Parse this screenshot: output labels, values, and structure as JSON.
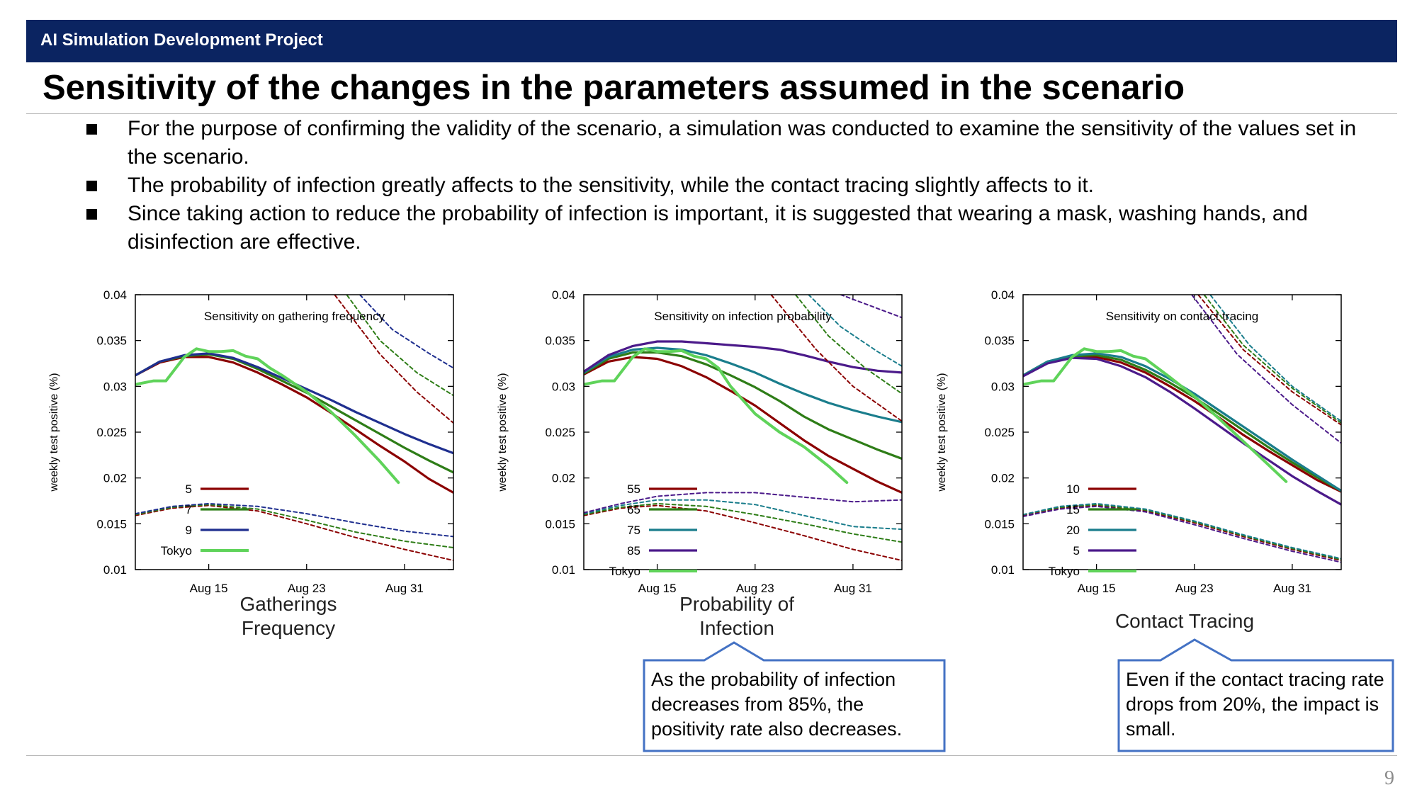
{
  "header": {
    "project": "AI Simulation Development Project"
  },
  "slide": {
    "title": "Sensitivity of the changes in the parameters assumed in the scenario",
    "bullets": [
      "For the purpose of confirming the validity of the scenario, a simulation was conducted to examine the sensitivity of the values set in the scenario.",
      "The probability of infection greatly affects to the sensitivity, while the contact tracing slightly affects to it.",
      "Since taking action to reduce the probability of infection is important, it is suggested that wearing a mask, washing hands, and disinfection are effective."
    ],
    "page_number": "9"
  },
  "captions": [
    "Gatherings\nFrequency",
    "Probability of\nInfection",
    "Contact Tracing"
  ],
  "callouts": [
    "As the probability of infection decreases from 85%, the positivity rate also decreases.",
    "Even if the contact tracing rate drops from 20%, the impact is small."
  ],
  "colors": {
    "header": "#0b2461",
    "callout_border": "#4472c4",
    "red": "#8b0000",
    "green": "#2e7d17",
    "teal": "#1a7d8c",
    "blue": "#1f2f8f",
    "purple": "#4b1a8a",
    "tokyo": "#5fd35a"
  },
  "chart_data": [
    {
      "type": "line",
      "title": "Sensitivity on gathering frequency",
      "ylabel": "weekly test positive (%)",
      "ylim": [
        0.01,
        0.04
      ],
      "yticks": [
        "0.04",
        "0.035",
        "0.03",
        "0.025",
        "0.02",
        "0.015",
        "0.01"
      ],
      "xticks": [
        "Aug 15",
        "Aug 23",
        "Aug 31"
      ],
      "xlim": [
        10,
        36
      ],
      "legend": "bottom-left",
      "series": [
        {
          "name": "5",
          "color": "red",
          "x": [
            10,
            12,
            14,
            16,
            18,
            20,
            22,
            24,
            26,
            28,
            30,
            32,
            34,
            36
          ],
          "y": [
            0.0312,
            0.0326,
            0.0332,
            0.0332,
            0.0326,
            0.0315,
            0.0302,
            0.0288,
            0.0271,
            0.0253,
            0.0235,
            0.0218,
            0.0199,
            0.0184
          ]
        },
        {
          "name": "7",
          "color": "green",
          "x": [
            10,
            12,
            14,
            16,
            18,
            20,
            22,
            24,
            26,
            28,
            30,
            32,
            34,
            36
          ],
          "y": [
            0.0312,
            0.0327,
            0.0333,
            0.0335,
            0.033,
            0.0319,
            0.0306,
            0.0293,
            0.0278,
            0.0263,
            0.0248,
            0.0233,
            0.0219,
            0.0206
          ]
        },
        {
          "name": "9",
          "color": "blue",
          "x": [
            10,
            12,
            14,
            16,
            18,
            20,
            22,
            24,
            26,
            28,
            30,
            32,
            34,
            36
          ],
          "y": [
            0.0312,
            0.0327,
            0.0334,
            0.0336,
            0.0331,
            0.0321,
            0.0309,
            0.0297,
            0.0285,
            0.0272,
            0.026,
            0.0248,
            0.0237,
            0.0227
          ]
        },
        {
          "name": "Tokyo",
          "color": "tokyo",
          "x": [
            10,
            11.5,
            12.5,
            14,
            15,
            16,
            17,
            18,
            19,
            20,
            21,
            22,
            24,
            26,
            28,
            30,
            31.5
          ],
          "y": [
            0.0302,
            0.0306,
            0.0306,
            0.0332,
            0.0341,
            0.0338,
            0.0338,
            0.0339,
            0.0333,
            0.033,
            0.032,
            0.0312,
            0.0294,
            0.0272,
            0.0246,
            0.0218,
            0.0195
          ]
        },
        {
          "dashed": true,
          "color": "red",
          "x": [
            26,
            30,
            33,
            36
          ],
          "y": [
            0.0405,
            0.0335,
            0.0294,
            0.026
          ]
        },
        {
          "dashed": true,
          "color": "green",
          "x": [
            27,
            30,
            33,
            36
          ],
          "y": [
            0.0405,
            0.035,
            0.0315,
            0.029
          ]
        },
        {
          "dashed": true,
          "color": "blue",
          "x": [
            28,
            31,
            34,
            36
          ],
          "y": [
            0.0405,
            0.0362,
            0.0336,
            0.032
          ]
        },
        {
          "dashed": true,
          "color": "red",
          "x": [
            10,
            13,
            16,
            20,
            24,
            28,
            32,
            36
          ],
          "y": [
            0.0159,
            0.0167,
            0.017,
            0.0164,
            0.015,
            0.0135,
            0.0122,
            0.011
          ]
        },
        {
          "dashed": true,
          "color": "green",
          "x": [
            10,
            13,
            16,
            20,
            24,
            28,
            32,
            36
          ],
          "y": [
            0.016,
            0.0168,
            0.0171,
            0.0166,
            0.0154,
            0.0141,
            0.0131,
            0.0124
          ]
        },
        {
          "dashed": true,
          "color": "blue",
          "x": [
            10,
            13,
            16,
            20,
            24,
            28,
            32,
            36
          ],
          "y": [
            0.0161,
            0.0169,
            0.0172,
            0.0169,
            0.0161,
            0.0151,
            0.0142,
            0.0136
          ]
        }
      ]
    },
    {
      "type": "line",
      "title": "Sensitivity on infection probability",
      "ylabel": "weekly test positive (%)",
      "ylim": [
        0.01,
        0.04
      ],
      "yticks": [
        "0.04",
        "0.035",
        "0.03",
        "0.025",
        "0.02",
        "0.015",
        "0.01"
      ],
      "xticks": [
        "Aug 15",
        "Aug 23",
        "Aug 31"
      ],
      "xlim": [
        10,
        36
      ],
      "legend": "bottom-left",
      "series": [
        {
          "name": "55",
          "color": "red",
          "x": [
            10,
            12,
            14,
            16,
            18,
            20,
            22,
            24,
            26,
            28,
            30,
            32,
            34,
            36
          ],
          "y": [
            0.0313,
            0.0327,
            0.0332,
            0.033,
            0.0322,
            0.031,
            0.0295,
            0.0279,
            0.026,
            0.0241,
            0.0224,
            0.021,
            0.0196,
            0.0184
          ]
        },
        {
          "name": "65",
          "color": "green",
          "x": [
            10,
            12,
            14,
            16,
            18,
            20,
            22,
            24,
            26,
            28,
            30,
            32,
            34,
            36
          ],
          "y": [
            0.0314,
            0.033,
            0.0337,
            0.0337,
            0.0333,
            0.0324,
            0.0312,
            0.0299,
            0.0284,
            0.0267,
            0.0253,
            0.0242,
            0.0231,
            0.0221
          ]
        },
        {
          "name": "75",
          "color": "teal",
          "x": [
            10,
            12,
            14,
            16,
            18,
            20,
            22,
            24,
            26,
            28,
            30,
            32,
            34,
            36
          ],
          "y": [
            0.0315,
            0.0332,
            0.034,
            0.0342,
            0.034,
            0.0334,
            0.0325,
            0.0315,
            0.0303,
            0.0292,
            0.0282,
            0.0274,
            0.0267,
            0.0261
          ]
        },
        {
          "name": "85",
          "color": "purple",
          "x": [
            10,
            12,
            14,
            16,
            18,
            20,
            22,
            24,
            26,
            28,
            30,
            32,
            34,
            36
          ],
          "y": [
            0.0316,
            0.0334,
            0.0344,
            0.0349,
            0.0349,
            0.0347,
            0.0345,
            0.0343,
            0.034,
            0.0334,
            0.0327,
            0.0321,
            0.0317,
            0.0315
          ]
        },
        {
          "name": "Tokyo",
          "color": "tokyo",
          "x": [
            10,
            11.5,
            12.5,
            14,
            15,
            16,
            17,
            18,
            19,
            20,
            21,
            22,
            24,
            26,
            28,
            30,
            31.5
          ],
          "y": [
            0.0302,
            0.0306,
            0.0306,
            0.0332,
            0.0341,
            0.0338,
            0.0338,
            0.0339,
            0.0333,
            0.033,
            0.032,
            0.03,
            0.027,
            0.025,
            0.0234,
            0.0213,
            0.0195
          ]
        },
        {
          "dashed": true,
          "color": "red",
          "x": [
            25,
            29,
            32,
            36
          ],
          "y": [
            0.0405,
            0.034,
            0.03,
            0.0262
          ]
        },
        {
          "dashed": true,
          "color": "green",
          "x": [
            27,
            30,
            33,
            36
          ],
          "y": [
            0.0405,
            0.0355,
            0.032,
            0.0292
          ]
        },
        {
          "dashed": true,
          "color": "teal",
          "x": [
            28,
            31,
            34,
            36
          ],
          "y": [
            0.0405,
            0.0365,
            0.0338,
            0.0322
          ]
        },
        {
          "dashed": true,
          "color": "purple",
          "x": [
            30,
            33,
            36
          ],
          "y": [
            0.0405,
            0.039,
            0.0375
          ]
        },
        {
          "dashed": true,
          "color": "red",
          "x": [
            10,
            13,
            16,
            20,
            24,
            28,
            32,
            36
          ],
          "y": [
            0.0159,
            0.0167,
            0.017,
            0.0164,
            0.0151,
            0.0137,
            0.0122,
            0.011
          ]
        },
        {
          "dashed": true,
          "color": "green",
          "x": [
            10,
            13,
            16,
            20,
            24,
            28,
            32,
            36
          ],
          "y": [
            0.016,
            0.0168,
            0.0172,
            0.0169,
            0.016,
            0.015,
            0.0139,
            0.013
          ]
        },
        {
          "dashed": true,
          "color": "teal",
          "x": [
            10,
            13,
            16,
            20,
            24,
            28,
            32,
            36
          ],
          "y": [
            0.0161,
            0.017,
            0.0176,
            0.0176,
            0.0171,
            0.0159,
            0.0147,
            0.0144
          ]
        },
        {
          "dashed": true,
          "color": "purple",
          "x": [
            10,
            13,
            16,
            20,
            24,
            28,
            32,
            36
          ],
          "y": [
            0.0162,
            0.0172,
            0.018,
            0.0184,
            0.0184,
            0.0179,
            0.0174,
            0.0176
          ]
        }
      ]
    },
    {
      "type": "line",
      "title": "Sensitivity on contact tracing",
      "ylabel": "weekly test positive (%)",
      "ylim": [
        0.01,
        0.04
      ],
      "yticks": [
        "0.04",
        "0.035",
        "0.03",
        "0.025",
        "0.02",
        "0.015",
        "0.01"
      ],
      "xticks": [
        "Aug 15",
        "Aug 23",
        "Aug 31"
      ],
      "xlim": [
        10,
        36
      ],
      "legend": "bottom-left",
      "series": [
        {
          "name": "10",
          "color": "red",
          "x": [
            10,
            12,
            14,
            16,
            18,
            20,
            22,
            24,
            26,
            28,
            30,
            32,
            34,
            36
          ],
          "y": [
            0.0312,
            0.0326,
            0.0332,
            0.0332,
            0.0326,
            0.0315,
            0.03,
            0.0284,
            0.0266,
            0.0247,
            0.023,
            0.0214,
            0.0198,
            0.0185
          ]
        },
        {
          "name": "15",
          "color": "green",
          "x": [
            10,
            12,
            14,
            16,
            18,
            20,
            22,
            24,
            26,
            28,
            30,
            32,
            34,
            36
          ],
          "y": [
            0.0312,
            0.0327,
            0.0333,
            0.0334,
            0.0329,
            0.0318,
            0.0304,
            0.0288,
            0.027,
            0.0252,
            0.0234,
            0.0217,
            0.0201,
            0.0186
          ]
        },
        {
          "name": "20",
          "color": "teal",
          "x": [
            10,
            12,
            14,
            16,
            18,
            20,
            22,
            24,
            26,
            28,
            30,
            32,
            34,
            36
          ],
          "y": [
            0.0312,
            0.0327,
            0.0334,
            0.0336,
            0.0332,
            0.0322,
            0.0308,
            0.0292,
            0.0274,
            0.0256,
            0.0238,
            0.022,
            0.0203,
            0.0186
          ]
        },
        {
          "name": "5",
          "color": "purple",
          "x": [
            10,
            12,
            14,
            16,
            18,
            20,
            22,
            24,
            26,
            28,
            30,
            32,
            34,
            36
          ],
          "y": [
            0.0311,
            0.0325,
            0.0331,
            0.033,
            0.0322,
            0.031,
            0.0294,
            0.0276,
            0.0257,
            0.0238,
            0.022,
            0.0202,
            0.0186,
            0.0171
          ]
        },
        {
          "name": "Tokyo",
          "color": "tokyo",
          "x": [
            10,
            11.5,
            12.5,
            14,
            15,
            16,
            17,
            18,
            19,
            20,
            21,
            22,
            24,
            26,
            28,
            30,
            31.5
          ],
          "y": [
            0.0302,
            0.0306,
            0.0306,
            0.0332,
            0.0341,
            0.0338,
            0.0338,
            0.0339,
            0.0333,
            0.033,
            0.032,
            0.031,
            0.0289,
            0.0265,
            0.024,
            0.0215,
            0.0196
          ]
        },
        {
          "dashed": true,
          "color": "red",
          "x": [
            24,
            28,
            32,
            36
          ],
          "y": [
            0.0405,
            0.034,
            0.0294,
            0.0258
          ]
        },
        {
          "dashed": true,
          "color": "green",
          "x": [
            24.5,
            28,
            32,
            36
          ],
          "y": [
            0.0405,
            0.0345,
            0.0298,
            0.026
          ]
        },
        {
          "dashed": true,
          "color": "teal",
          "x": [
            25,
            28.5,
            32,
            36
          ],
          "y": [
            0.0405,
            0.0345,
            0.03,
            0.0262
          ]
        },
        {
          "dashed": true,
          "color": "purple",
          "x": [
            23.5,
            27.5,
            32,
            36
          ],
          "y": [
            0.0405,
            0.0335,
            0.028,
            0.0238
          ]
        },
        {
          "dashed": true,
          "color": "red",
          "x": [
            10,
            13,
            16,
            20,
            24,
            28,
            32,
            36
          ],
          "y": [
            0.0159,
            0.0167,
            0.017,
            0.0164,
            0.0151,
            0.0136,
            0.0122,
            0.011
          ]
        },
        {
          "dashed": true,
          "color": "green",
          "x": [
            10,
            13,
            16,
            20,
            24,
            28,
            32,
            36
          ],
          "y": [
            0.016,
            0.0168,
            0.0171,
            0.0165,
            0.0152,
            0.0137,
            0.0123,
            0.0111
          ]
        },
        {
          "dashed": true,
          "color": "teal",
          "x": [
            10,
            13,
            16,
            20,
            24,
            28,
            32,
            36
          ],
          "y": [
            0.016,
            0.0169,
            0.0172,
            0.0166,
            0.0153,
            0.0138,
            0.0124,
            0.0112
          ]
        },
        {
          "dashed": true,
          "color": "purple",
          "x": [
            10,
            13,
            16,
            20,
            24,
            28,
            32,
            36
          ],
          "y": [
            0.0158,
            0.0166,
            0.0169,
            0.0163,
            0.0149,
            0.0134,
            0.012,
            0.0108
          ]
        }
      ]
    }
  ]
}
